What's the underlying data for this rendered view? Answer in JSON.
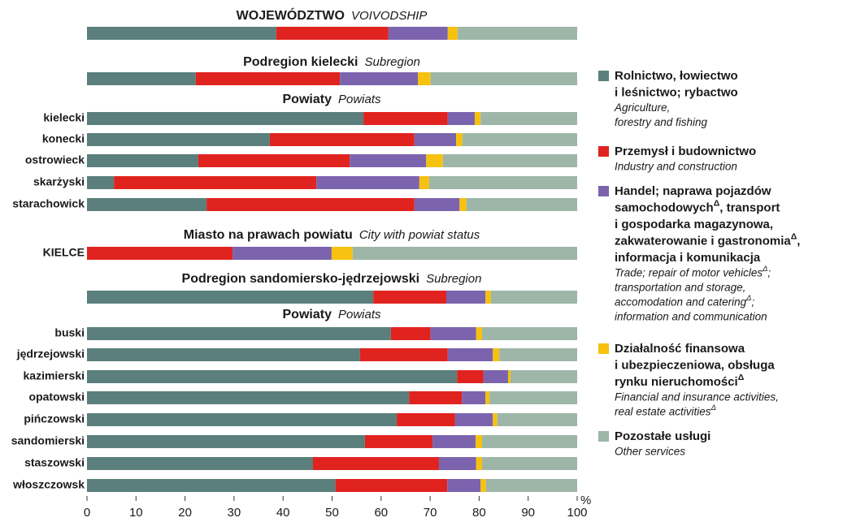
{
  "chart_data": {
    "type": "stacked-bar",
    "xlim": [
      0,
      100
    ],
    "xticks": [
      0,
      10,
      20,
      30,
      40,
      50,
      60,
      70,
      80,
      90,
      100
    ],
    "x_unit": "%",
    "series": [
      {
        "name_lines": [
          "Rolnictwo, łowiectwo",
          "i leśnictwo; rybactwo"
        ],
        "translation_lines": [
          "Agriculture,",
          "forestry and fishing"
        ],
        "color": "#5a7f7c"
      },
      {
        "name_lines": [
          "Przemysł i budownictwo"
        ],
        "translation_lines": [
          "Industry and construction"
        ],
        "color": "#e0231f"
      },
      {
        "name_lines": [
          "Handel; naprawa pojazdów",
          "samochodowychΔ, transport",
          "i gospodarka magazynowa,",
          "zakwaterowanie i gastronomiaΔ,",
          "informacja i komunikacja"
        ],
        "translation_lines": [
          "Trade; repair of motor vehiclesΔ;",
          "transportation and storage,",
          "accomodation and cateringΔ;",
          "information and communication"
        ],
        "color": "#7b64ad"
      },
      {
        "name_lines": [
          "Działalność finansowa",
          "i ubezpieczeniowa, obsługa",
          "rynku nieruchomościΔ"
        ],
        "translation_lines": [
          "Financial and insurance activities,",
          "real estate activitiesΔ"
        ],
        "color": "#f6c10f"
      },
      {
        "name_lines": [
          "Pozostałe usługi"
        ],
        "translation_lines": [
          "Other services"
        ],
        "color": "#9db6a8"
      }
    ],
    "rows": [
      {
        "heading": {
          "bold": "WOJEWÓDZTWO",
          "italic": "VOIVODSHIP"
        }
      },
      {
        "values": [
          38.6,
          22.9,
          12.1,
          2.0,
          24.4
        ]
      },
      {
        "heading": {
          "bold": "Podregion kielecki",
          "italic": "Subregion"
        }
      },
      {
        "values": [
          22.2,
          29.4,
          15.9,
          2.6,
          29.9
        ]
      },
      {
        "heading": {
          "bold": "Powiaty",
          "italic": "Powiats"
        }
      },
      {
        "label": "kielecki",
        "values": [
          56.4,
          17.2,
          5.5,
          1.2,
          19.7
        ]
      },
      {
        "label": "konecki",
        "values": [
          37.3,
          29.5,
          8.5,
          1.3,
          23.4
        ]
      },
      {
        "label": "ostrowieck",
        "values": [
          22.7,
          30.9,
          15.6,
          3.4,
          27.4
        ]
      },
      {
        "label": "skarżyski",
        "values": [
          5.5,
          41.3,
          21.0,
          2.0,
          30.2
        ]
      },
      {
        "label": "starachowick",
        "values": [
          24.4,
          42.4,
          9.2,
          1.4,
          22.6
        ]
      },
      {
        "heading": {
          "bold": "Miasto na prawach powiatu",
          "italic": "City with powiat status"
        }
      },
      {
        "label": "KIELCE",
        "values": [
          0,
          29.7,
          20.2,
          4.3,
          45.8
        ]
      },
      {
        "heading": {
          "bold": "Podregion sandomiersko-jędrzejowski",
          "italic": "Subregion"
        }
      },
      {
        "values": [
          58.4,
          14.9,
          8.0,
          1.1,
          17.6
        ]
      },
      {
        "heading": {
          "bold": "Powiaty",
          "italic": "Powiats"
        }
      },
      {
        "label": "buski",
        "values": [
          62.0,
          8.1,
          9.3,
          1.2,
          19.4
        ]
      },
      {
        "label": "jędrzejowski",
        "values": [
          55.7,
          17.9,
          9.2,
          1.3,
          15.9
        ]
      },
      {
        "label": "kazimierski",
        "values": [
          75.5,
          5.4,
          5.0,
          0.5,
          13.6
        ]
      },
      {
        "label": "opatowski",
        "values": [
          65.7,
          10.8,
          4.8,
          0.8,
          17.9
        ]
      },
      {
        "label": "pińczowski",
        "values": [
          63.2,
          11.9,
          7.7,
          0.9,
          16.3
        ]
      },
      {
        "label": "sandomierski",
        "values": [
          56.7,
          13.8,
          8.8,
          1.3,
          19.4
        ]
      },
      {
        "label": "staszowski",
        "values": [
          46.1,
          25.7,
          7.6,
          1.2,
          19.4
        ]
      },
      {
        "label": "włoszczowsk",
        "values": [
          50.7,
          22.8,
          6.8,
          1.1,
          18.6
        ]
      }
    ]
  }
}
